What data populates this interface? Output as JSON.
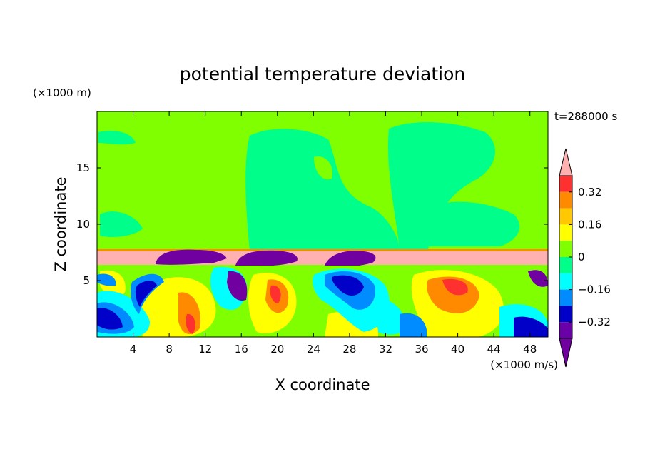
{
  "chart_data": {
    "type": "heatmap",
    "title": "potential temperature deviation",
    "xlabel": "X coordinate",
    "ylabel": "Z coordinate",
    "x_unit": "(×1000 m/s)",
    "y_unit": "(×1000 m)",
    "time_label": "t=288000 s",
    "xlim": [
      0,
      50
    ],
    "ylim": [
      0,
      20
    ],
    "x_ticks": [
      4,
      8,
      12,
      16,
      20,
      24,
      28,
      32,
      36,
      40,
      44,
      48
    ],
    "y_ticks": [
      5,
      10,
      15
    ],
    "colorbar": {
      "levels": [
        0.4,
        0.32,
        0.24,
        0.16,
        0.08,
        0,
        -0.08,
        -0.16,
        -0.24,
        -0.32,
        -0.4
      ],
      "tick_labels": [
        "0.32",
        "0.16",
        "0",
        "−0.16",
        "−0.32"
      ],
      "tick_values": [
        0.32,
        0.16,
        0,
        -0.16,
        -0.32
      ],
      "colors": [
        "#ff3030",
        "#ff8a00",
        "#ffc800",
        "#ffff00",
        "#7fff00",
        "#00ff8a",
        "#00ffff",
        "#008cff",
        "#0000c8",
        "#6a00a8"
      ],
      "over_color": "#ffb0b0",
      "under_color": "#7000a0"
    },
    "regions": {
      "upper_dominant": 0.0,
      "inversion_layer_z": [
        6.0,
        8.0
      ],
      "inversion_value": 0.45,
      "lower_layer_top_z": 6.0
    }
  }
}
